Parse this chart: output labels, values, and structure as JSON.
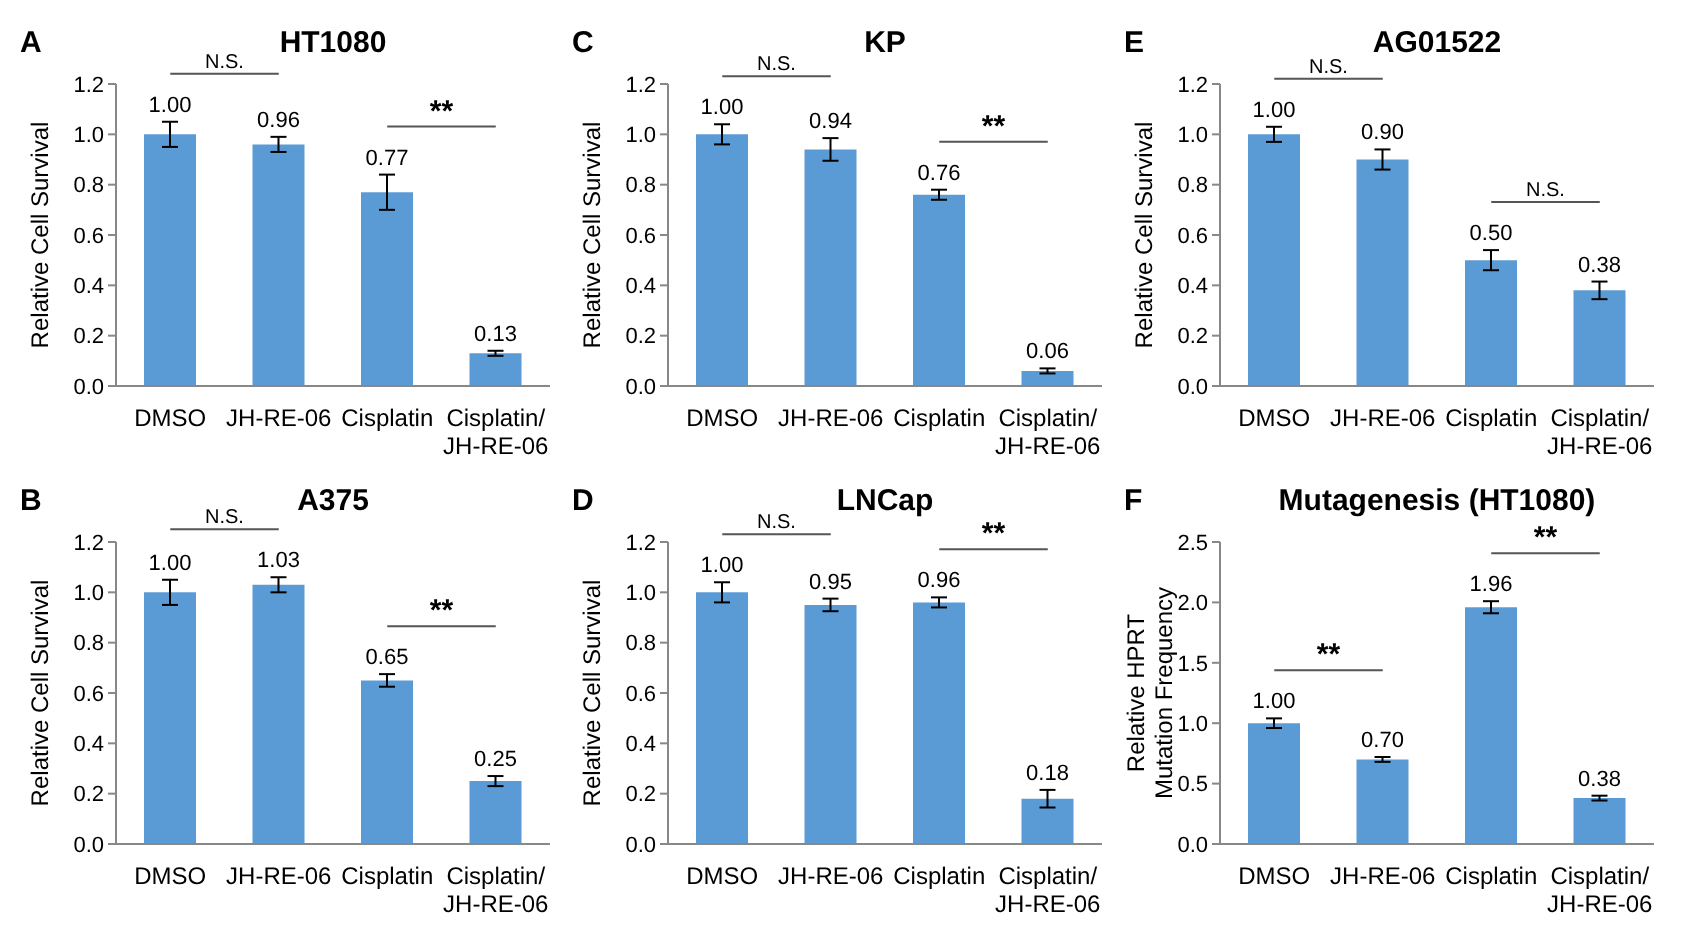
{
  "chart_data": [
    {
      "type": "bar",
      "title": "HT1080",
      "ylabel": "Relative Cell Survival",
      "categories": [
        "DMSO",
        "JH-RE-06",
        "Cisplatin",
        "Cisplatin/JH-RE-06"
      ],
      "values": [
        1.0,
        0.96,
        0.77,
        0.13
      ],
      "errors": [
        0.05,
        0.03,
        0.07,
        0.01
      ],
      "value_labels": [
        "1.00",
        "0.96",
        "0.77",
        "0.13"
      ],
      "color": "#5b9bd5",
      "ylim": [
        0,
        1.2
      ],
      "yticks": [
        {
          "value": 0,
          "label": "0.0"
        },
        {
          "value": 0.2,
          "label": "0.2"
        },
        {
          "value": 0.4,
          "label": "0.4"
        },
        {
          "value": 0.6,
          "label": "0.6"
        },
        {
          "value": 0.8,
          "label": "0.8"
        },
        {
          "value": 1,
          "label": "1.0"
        },
        {
          "value": 1.2,
          "label": "1.2"
        }
      ],
      "grid": false,
      "legend": false,
      "annotations": [
        "A",
        "N.S.",
        "**"
      ]
    },
    {
      "type": "bar",
      "title": "KP",
      "ylabel": "Relative Cell Survival",
      "categories": [
        "DMSO",
        "JH-RE-06",
        "Cisplatin",
        "Cisplatin/JH-RE-06"
      ],
      "values": [
        1.0,
        0.94,
        0.76,
        0.06
      ],
      "errors": [
        0.04,
        0.045,
        0.02,
        0.01
      ],
      "value_labels": [
        "1.00",
        "0.94",
        "0.76",
        "0.06"
      ],
      "color": "#5b9bd5",
      "ylim": [
        0,
        1.2
      ],
      "yticks": [
        {
          "value": 0,
          "label": "0.0"
        },
        {
          "value": 0.2,
          "label": "0.2"
        },
        {
          "value": 0.4,
          "label": "0.4"
        },
        {
          "value": 0.6,
          "label": "0.6"
        },
        {
          "value": 0.8,
          "label": "0.8"
        },
        {
          "value": 1,
          "label": "1.0"
        },
        {
          "value": 1.2,
          "label": "1.2"
        }
      ],
      "grid": false,
      "legend": false,
      "annotations": [
        "C",
        "N.S.",
        "**"
      ]
    },
    {
      "type": "bar",
      "title": "AG01522",
      "ylabel": "Relative Cell Survival",
      "categories": [
        "DMSO",
        "JH-RE-06",
        "Cisplatin",
        "Cisplatin/JH-RE-06"
      ],
      "values": [
        1.0,
        0.9,
        0.5,
        0.38
      ],
      "errors": [
        0.03,
        0.04,
        0.04,
        0.035
      ],
      "value_labels": [
        "1.00",
        "0.90",
        "0.50",
        "0.38"
      ],
      "color": "#5b9bd5",
      "ylim": [
        0,
        1.2
      ],
      "yticks": [
        {
          "value": 0,
          "label": "0.0"
        },
        {
          "value": 0.2,
          "label": "0.2"
        },
        {
          "value": 0.4,
          "label": "0.4"
        },
        {
          "value": 0.6,
          "label": "0.6"
        },
        {
          "value": 0.8,
          "label": "0.8"
        },
        {
          "value": 1,
          "label": "1.0"
        },
        {
          "value": 1.2,
          "label": "1.2"
        }
      ],
      "grid": false,
      "legend": false,
      "annotations": [
        "E",
        "N.S.",
        "N.S."
      ]
    },
    {
      "type": "bar",
      "title": "A375",
      "ylabel": "Relative Cell Survival",
      "categories": [
        "DMSO",
        "JH-RE-06",
        "Cisplatin",
        "Cisplatin/JH-RE-06"
      ],
      "values": [
        1.0,
        1.03,
        0.65,
        0.25
      ],
      "errors": [
        0.05,
        0.03,
        0.025,
        0.02
      ],
      "value_labels": [
        "1.00",
        "1.03",
        "0.65",
        "0.25"
      ],
      "color": "#5b9bd5",
      "ylim": [
        0,
        1.2
      ],
      "yticks": [
        {
          "value": 0,
          "label": "0.0"
        },
        {
          "value": 0.2,
          "label": "0.2"
        },
        {
          "value": 0.4,
          "label": "0.4"
        },
        {
          "value": 0.6,
          "label": "0.6"
        },
        {
          "value": 0.8,
          "label": "0.8"
        },
        {
          "value": 1,
          "label": "1.0"
        },
        {
          "value": 1.2,
          "label": "1.2"
        }
      ],
      "grid": false,
      "legend": false,
      "annotations": [
        "B",
        "N.S.",
        "**"
      ]
    },
    {
      "type": "bar",
      "title": "LNCap",
      "ylabel": "Relative Cell Survival",
      "categories": [
        "DMSO",
        "JH-RE-06",
        "Cisplatin",
        "Cisplatin/JH-RE-06"
      ],
      "values": [
        1.0,
        0.95,
        0.96,
        0.18
      ],
      "errors": [
        0.04,
        0.025,
        0.02,
        0.035
      ],
      "value_labels": [
        "1.00",
        "0.95",
        "0.96",
        "0.18"
      ],
      "color": "#5b9bd5",
      "ylim": [
        0,
        1.2
      ],
      "yticks": [
        {
          "value": 0,
          "label": "0.0"
        },
        {
          "value": 0.2,
          "label": "0.2"
        },
        {
          "value": 0.4,
          "label": "0.4"
        },
        {
          "value": 0.6,
          "label": "0.6"
        },
        {
          "value": 0.8,
          "label": "0.8"
        },
        {
          "value": 1,
          "label": "1.0"
        },
        {
          "value": 1.2,
          "label": "1.2"
        }
      ],
      "grid": false,
      "legend": false,
      "annotations": [
        "D",
        "N.S.",
        "**"
      ]
    },
    {
      "type": "bar",
      "title": "Mutagenesis (HT1080)",
      "ylabel": "Relative HPRT Mutation Frequency",
      "categories": [
        "DMSO",
        "JH-RE-06",
        "Cisplatin",
        "Cisplatin/JH-RE-06"
      ],
      "values": [
        1.0,
        0.7,
        1.96,
        0.38
      ],
      "errors": [
        0.04,
        0.02,
        0.05,
        0.02
      ],
      "value_labels": [
        "1.00",
        "0.70",
        "1.96",
        "0.38"
      ],
      "color": "#5b9bd5",
      "ylim": [
        0,
        2.5
      ],
      "yticks": [
        {
          "value": 0,
          "label": "0.0"
        },
        {
          "value": 0.5,
          "label": "0.5"
        },
        {
          "value": 1,
          "label": "1.0"
        },
        {
          "value": 1.5,
          "label": "1.5"
        },
        {
          "value": 2,
          "label": "2.0"
        },
        {
          "value": 2.5,
          "label": "2.5"
        }
      ],
      "grid": false,
      "legend": false,
      "annotations": [
        "F",
        "**",
        "**"
      ]
    }
  ]
}
